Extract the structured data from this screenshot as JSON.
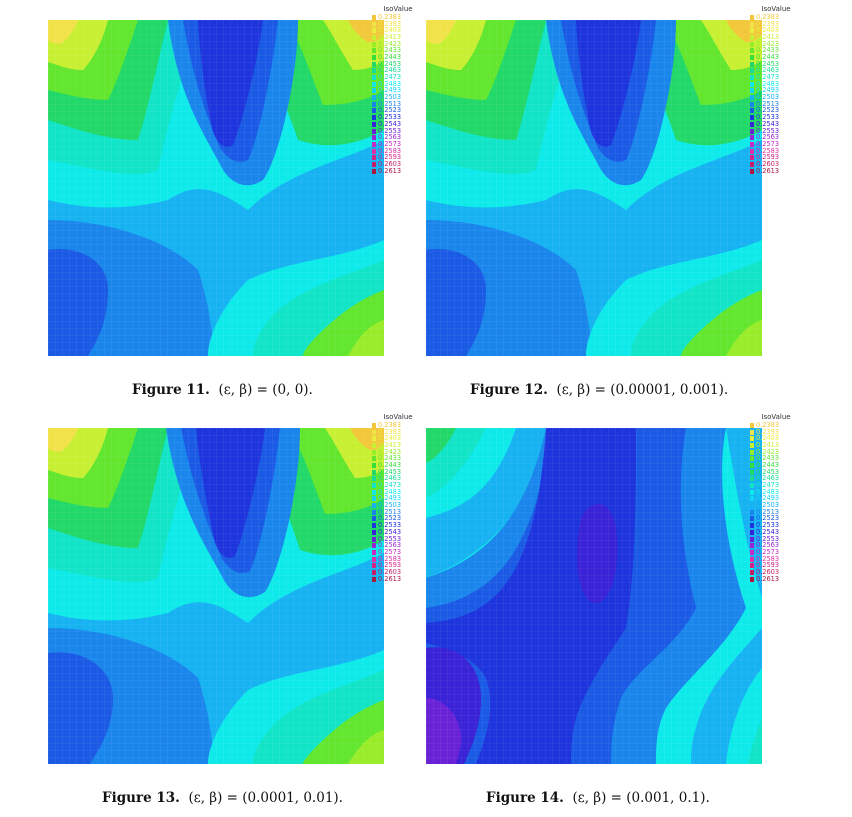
{
  "legend": {
    "title": "IsoValue",
    "entries": [
      {
        "label": "0.2383",
        "color": "#f2c83a"
      },
      {
        "label": "0.2393",
        "color": "#f2e24a"
      },
      {
        "label": "0.2403",
        "color": "#e7f03a"
      },
      {
        "label": "0.2413",
        "color": "#c8f032"
      },
      {
        "label": "0.2423",
        "color": "#98ec2a"
      },
      {
        "label": "0.2433",
        "color": "#62e62e"
      },
      {
        "label": "0.2443",
        "color": "#36de3c"
      },
      {
        "label": "0.2453",
        "color": "#22d868"
      },
      {
        "label": "0.2463",
        "color": "#1adc98"
      },
      {
        "label": "0.2473",
        "color": "#12e4c8"
      },
      {
        "label": "0.2483",
        "color": "#0eeaea"
      },
      {
        "label": "0.2493",
        "color": "#12d6f6"
      },
      {
        "label": "0.2503",
        "color": "#16b2f2"
      },
      {
        "label": "0.2513",
        "color": "#1a86ec"
      },
      {
        "label": "0.2523",
        "color": "#1a5ae4"
      },
      {
        "label": "0.2533",
        "color": "#1e34dc"
      },
      {
        "label": "0.2543",
        "color": "#3a22d6"
      },
      {
        "label": "0.2553",
        "color": "#6a22d6"
      },
      {
        "label": "0.2563",
        "color": "#9a26d2"
      },
      {
        "label": "0.2573",
        "color": "#c82ac4"
      },
      {
        "label": "0.2583",
        "color": "#e02ea8"
      },
      {
        "label": "0.2593",
        "color": "#d62486"
      },
      {
        "label": "0.2603",
        "color": "#c41e66"
      },
      {
        "label": "0.2613",
        "color": "#a81a44"
      }
    ]
  },
  "figures": [
    {
      "label": "Figure 11.",
      "formula": "(ε, β) = (0, 0)."
    },
    {
      "label": "Figure 12.",
      "formula": "(ε, β) = (0.00001, 0.001)."
    },
    {
      "label": "Figure 13.",
      "formula": "(ε, β) = (0.0001, 0.01)."
    },
    {
      "label": "Figure 14.",
      "formula": "(ε, β) = (0.001, 0.1)."
    }
  ]
}
